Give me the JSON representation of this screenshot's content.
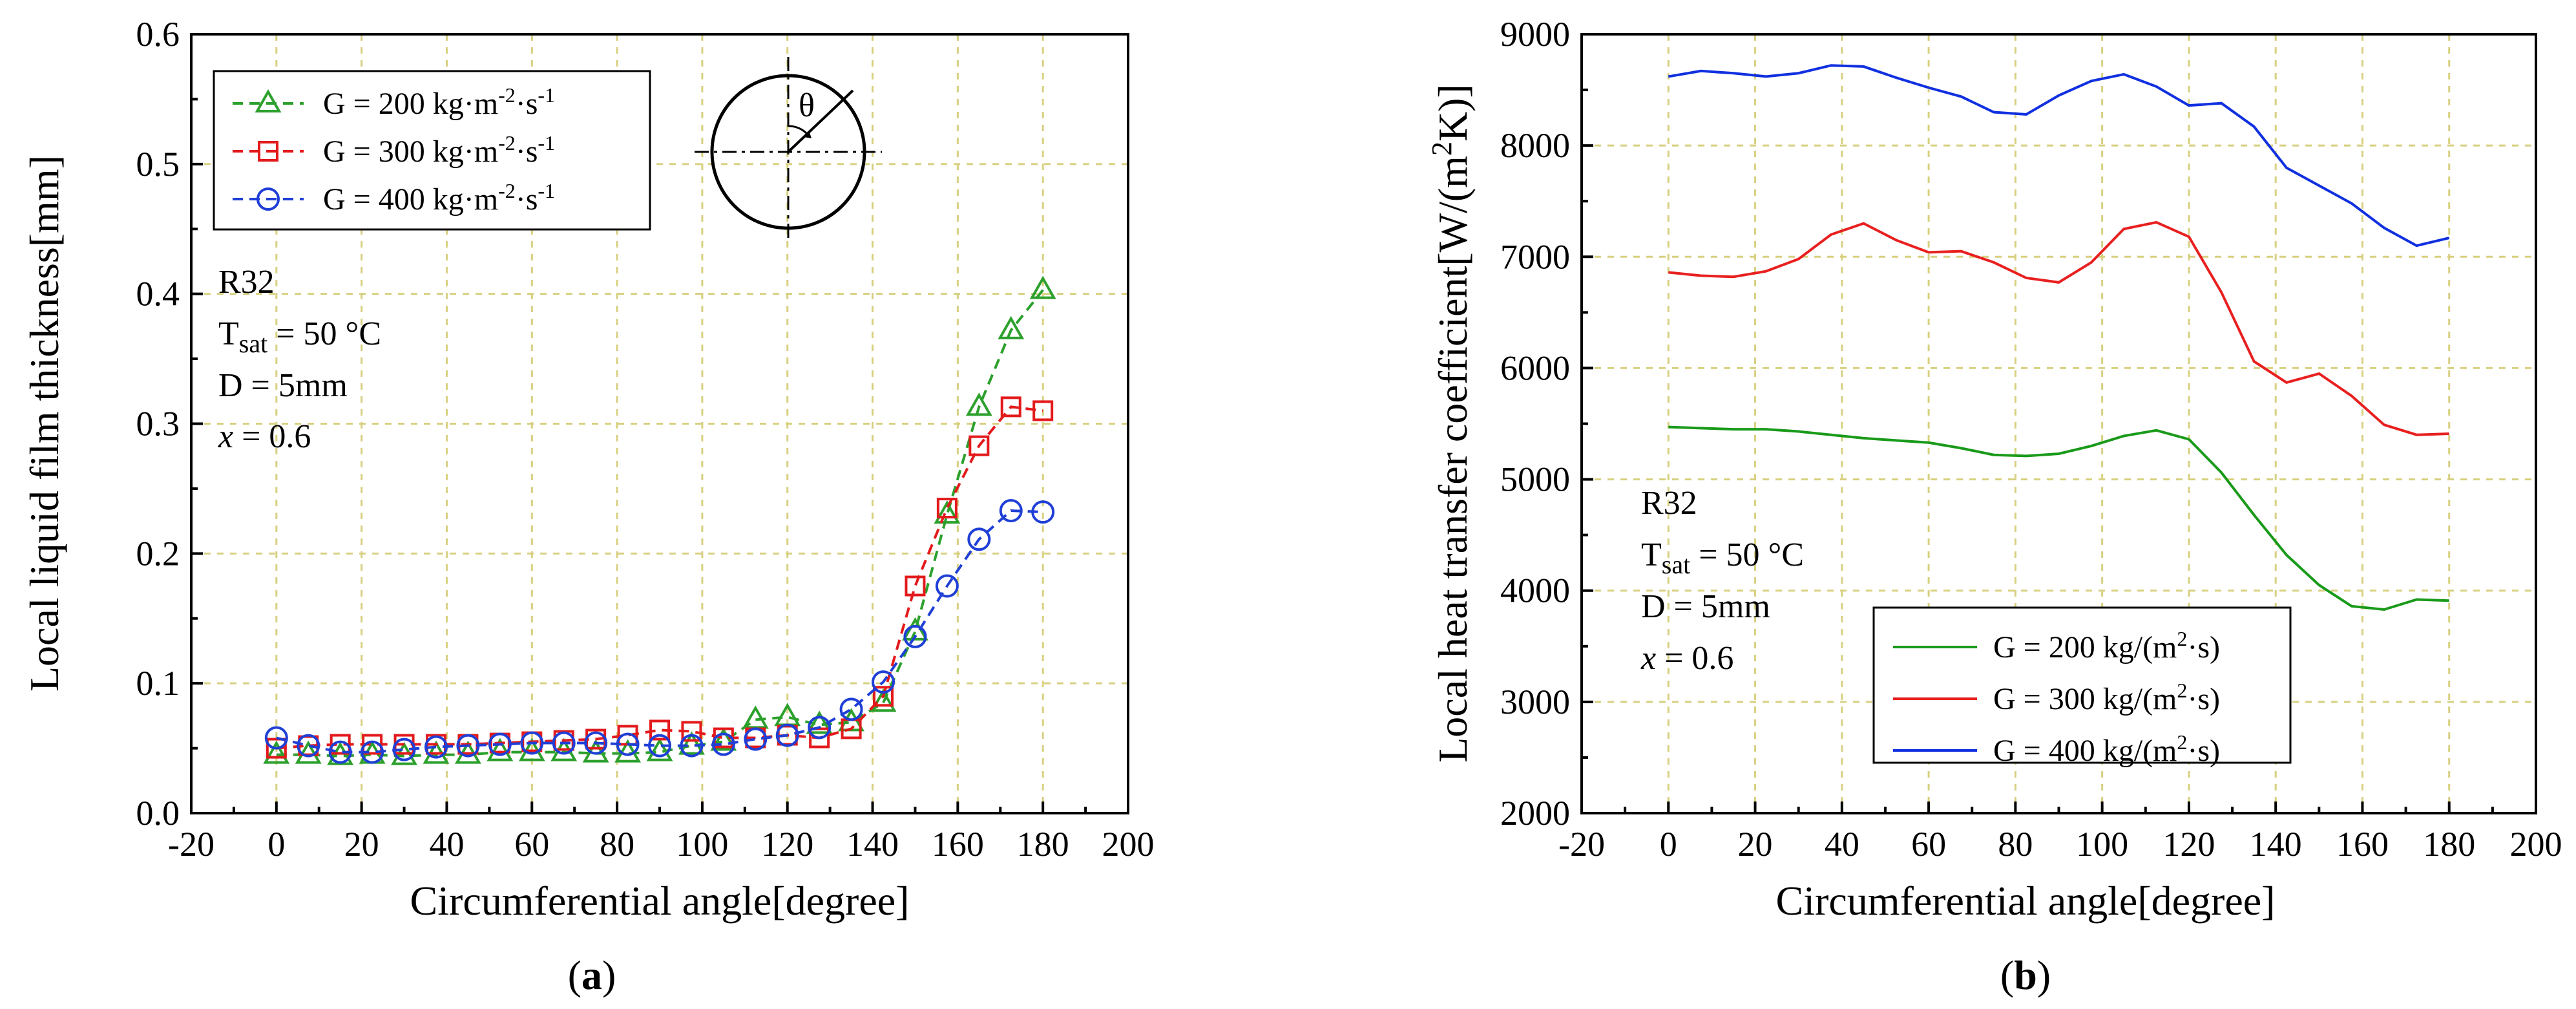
{
  "chart_data": [
    {
      "id": "a",
      "type": "line",
      "caption": "(a)",
      "caption_letter": "a",
      "xlabel": "Circumferential angle[degree]",
      "ylabel": "Local liquid film thickness[mm]",
      "xlim": [
        -20,
        200
      ],
      "ylim": [
        0.0,
        0.6
      ],
      "xticks": [
        -20,
        0,
        20,
        40,
        60,
        80,
        100,
        120,
        140,
        160,
        180,
        200
      ],
      "yticks": [
        "0.0",
        "0.1",
        "0.2",
        "0.3",
        "0.4",
        "0.5",
        "0.6"
      ],
      "grid": true,
      "annotations": {
        "fluid": "R32",
        "tsat_label": "T",
        "tsat_sub": "sat",
        "tsat_value": " = 50 °C",
        "diameter": "D = 5mm",
        "quality_var": "x",
        "quality_value": " = 0.6",
        "theta": "θ"
      },
      "legend_position": "top-left",
      "series": [
        {
          "name": "G = 200 kg·m⁻²·s⁻¹",
          "legend_main": "G = 200 kg·m",
          "legend_exp1": "-2",
          "legend_mid": "·s",
          "legend_exp2": "-1",
          "color": "#2ca02c",
          "marker": "triangle",
          "x": [
            0,
            7.5,
            15,
            22.5,
            30,
            37.5,
            45,
            52.5,
            60,
            67.5,
            75,
            82.5,
            90,
            97.5,
            105,
            112.5,
            120,
            127.5,
            135,
            142.5,
            150,
            157.5,
            165,
            172.5,
            180
          ],
          "y": [
            0.045,
            0.045,
            0.044,
            0.045,
            0.044,
            0.045,
            0.045,
            0.047,
            0.047,
            0.047,
            0.046,
            0.046,
            0.047,
            0.052,
            0.055,
            0.072,
            0.074,
            0.068,
            0.07,
            0.085,
            0.14,
            0.23,
            0.313,
            0.372,
            0.403
          ]
        },
        {
          "name": "G = 300 kg·m⁻²·s⁻¹",
          "legend_main": "G = 300 kg·m",
          "legend_exp1": "-2",
          "legend_mid": "·s",
          "legend_exp2": "-1",
          "color": "#e31a1c",
          "marker": "square",
          "x": [
            0,
            7.5,
            15,
            22.5,
            30,
            37.5,
            45,
            52.5,
            60,
            67.5,
            75,
            82.5,
            90,
            97.5,
            105,
            112.5,
            120,
            127.5,
            135,
            142.5,
            150,
            157.5,
            165,
            172.5,
            180
          ],
          "y": [
            0.05,
            0.052,
            0.053,
            0.053,
            0.053,
            0.053,
            0.053,
            0.054,
            0.055,
            0.056,
            0.057,
            0.06,
            0.064,
            0.063,
            0.058,
            0.058,
            0.06,
            0.058,
            0.065,
            0.09,
            0.175,
            0.235,
            0.283,
            0.313,
            0.31
          ]
        },
        {
          "name": "G = 400 kg·m⁻²·s⁻¹",
          "legend_main": "G = 400 kg·m",
          "legend_exp1": "-2",
          "legend_mid": "·s",
          "legend_exp2": "-1",
          "color": "#1f3fd6",
          "marker": "circle",
          "x": [
            0,
            7.5,
            15,
            22.5,
            30,
            37.5,
            45,
            52.5,
            60,
            67.5,
            75,
            82.5,
            90,
            97.5,
            105,
            112.5,
            120,
            127.5,
            135,
            142.5,
            150,
            157.5,
            165,
            172.5,
            180
          ],
          "y": [
            0.058,
            0.052,
            0.047,
            0.047,
            0.049,
            0.051,
            0.052,
            0.053,
            0.054,
            0.054,
            0.054,
            0.053,
            0.052,
            0.052,
            0.053,
            0.057,
            0.06,
            0.066,
            0.08,
            0.101,
            0.136,
            0.175,
            0.211,
            0.233,
            0.232
          ]
        }
      ]
    },
    {
      "id": "b",
      "type": "line",
      "caption": "(b)",
      "caption_letter": "b",
      "xlabel": "Circumferential angle[degree]",
      "ylabel_main": "Local heat transfer coefficient[W/(m",
      "ylabel_exp": "2",
      "ylabel_end": "K)]",
      "xlim": [
        -20,
        200
      ],
      "ylim": [
        2000,
        9000
      ],
      "xticks": [
        -20,
        0,
        20,
        40,
        60,
        80,
        100,
        120,
        140,
        160,
        180,
        200
      ],
      "yticks": [
        2000,
        3000,
        4000,
        5000,
        6000,
        7000,
        8000,
        9000
      ],
      "grid": true,
      "annotations": {
        "fluid": "R32",
        "tsat_label": "T",
        "tsat_sub": "sat",
        "tsat_value": " = 50 °C",
        "diameter": "D = 5mm",
        "quality_var": "x",
        "quality_value": " = 0.6"
      },
      "legend_position": "bottom-center",
      "series": [
        {
          "name": "G = 200 kg/(m²·s)",
          "legend_main": "G = 200 kg/(m",
          "legend_exp": "2",
          "legend_end": "·s)",
          "color": "#1a9a1a",
          "x": [
            0,
            7.5,
            15,
            22.5,
            30,
            37.5,
            45,
            52.5,
            60,
            67.5,
            75,
            82.5,
            90,
            97.5,
            105,
            112.5,
            120,
            127.5,
            135,
            142.5,
            150,
            157.5,
            165,
            172.5,
            180
          ],
          "y": [
            5470,
            5460,
            5450,
            5450,
            5430,
            5400,
            5370,
            5350,
            5330,
            5280,
            5220,
            5210,
            5230,
            5300,
            5390,
            5440,
            5360,
            5060,
            4680,
            4320,
            4050,
            3860,
            3830,
            3920,
            3910
          ]
        },
        {
          "name": "G = 300 kg/(m²·s)",
          "legend_main": "G = 300 kg/(m",
          "legend_exp": "2",
          "legend_end": "·s)",
          "color": "#e82020",
          "x": [
            0,
            7.5,
            15,
            22.5,
            30,
            37.5,
            45,
            52.5,
            60,
            67.5,
            75,
            82.5,
            90,
            97.5,
            105,
            112.5,
            120,
            127.5,
            135,
            142.5,
            150,
            157.5,
            165,
            172.5,
            180
          ],
          "y": [
            6860,
            6830,
            6820,
            6870,
            6980,
            7200,
            7300,
            7150,
            7040,
            7050,
            6950,
            6810,
            6770,
            6950,
            7250,
            7310,
            7180,
            6680,
            6060,
            5870,
            5950,
            5750,
            5490,
            5400,
            5410
          ]
        },
        {
          "name": "G = 400 kg/(m²·s)",
          "legend_main": "G = 400 kg/(m",
          "legend_exp": "2",
          "legend_end": "·s)",
          "color": "#1030e0",
          "x": [
            0,
            7.5,
            15,
            22.5,
            30,
            37.5,
            45,
            52.5,
            60,
            67.5,
            75,
            82.5,
            90,
            97.5,
            105,
            112.5,
            120,
            127.5,
            135,
            142.5,
            150,
            157.5,
            165,
            172.5,
            180
          ],
          "y": [
            8620,
            8670,
            8650,
            8620,
            8650,
            8720,
            8710,
            8610,
            8520,
            8440,
            8300,
            8280,
            8450,
            8580,
            8640,
            8530,
            8360,
            8380,
            8170,
            7800,
            7640,
            7480,
            7260,
            7100,
            7170
          ]
        }
      ]
    }
  ]
}
